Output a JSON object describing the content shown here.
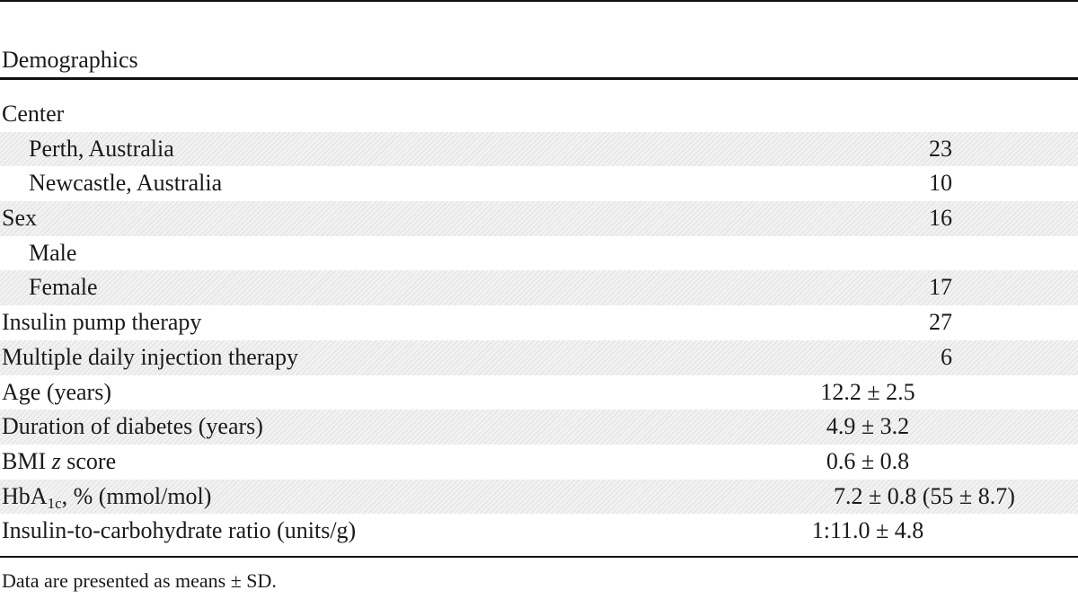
{
  "table": {
    "header": "Demographics",
    "rows": [
      {
        "label": "Center",
        "value": ""
      },
      {
        "label": "Perth, Australia",
        "value": "23"
      },
      {
        "label": "Newcastle, Australia",
        "value": "10"
      },
      {
        "label": "Sex",
        "value": "16"
      },
      {
        "label": "Male",
        "value": ""
      },
      {
        "label": "Female",
        "value": "17"
      },
      {
        "label": "Insulin pump therapy",
        "value": "27"
      },
      {
        "label": "Multiple daily injection therapy",
        "value": "6"
      },
      {
        "label": "Age (years)",
        "value": "12.2 ± 2.5"
      },
      {
        "label": "Duration of diabetes (years)",
        "value": "4.9 ± 3.2"
      },
      {
        "label_prefix": "BMI ",
        "label_italic": "z",
        "label_suffix": " score",
        "value": "0.6 ± 0.8"
      },
      {
        "label_prefix": "HbA",
        "label_sub": "1c",
        "label_suffix": ", % (mmol/mol)",
        "value": "7.2 ± 0.8 (55 ± 8.7)"
      },
      {
        "label": "Insulin-to-carbohydrate ratio (units/g)",
        "value": "1:11.0 ± 4.8"
      }
    ],
    "footnote": "Data are presented as means ± SD."
  }
}
